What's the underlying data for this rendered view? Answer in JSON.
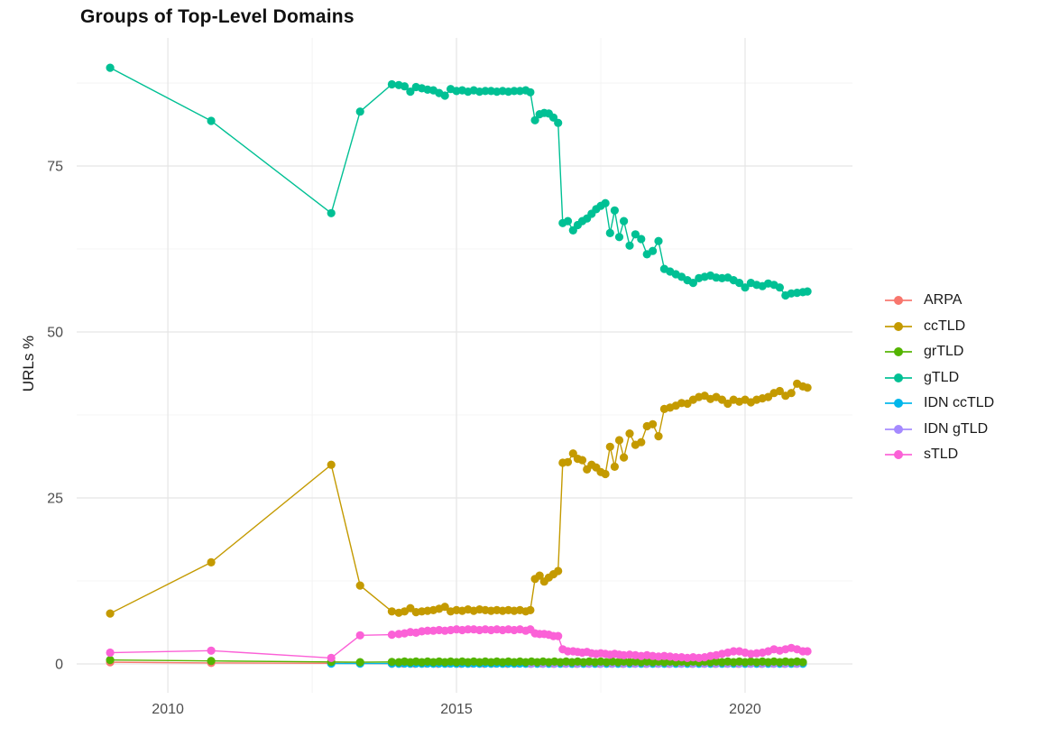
{
  "chart_data": {
    "type": "line",
    "title": "Groups of Top-Level Domains",
    "xlabel": "",
    "ylabel": "URLs %",
    "x_ticks": [
      2010,
      2015,
      2020
    ],
    "x_minor_ticks": [
      2012.5,
      2017.5
    ],
    "y_ticks": [
      0,
      25,
      50,
      75
    ],
    "y_minor_ticks": [
      12.5,
      37.5,
      62.5,
      87.5
    ],
    "xlim": [
      2008.42,
      2021.86
    ],
    "ylim": [
      -4.35,
      94.3
    ],
    "grid": true,
    "legend_position": "right",
    "marker": "point",
    "series": [
      {
        "name": "ARPA",
        "color": "#F8766D",
        "points": [
          [
            2009.0,
            0.25
          ],
          [
            2010.75,
            0.15
          ],
          [
            2012.83,
            0.1
          ],
          [
            2013.33,
            0.07
          ]
        ],
        "flat": {
          "from": 2013.88,
          "to": 2021.0,
          "step": 0.2,
          "value": 0.05,
          "amp": 0.02
        }
      },
      {
        "name": "ccTLD",
        "color": "#C49A00",
        "points": [
          [
            2009.0,
            7.6
          ],
          [
            2010.75,
            15.3
          ],
          [
            2012.83,
            30.0
          ],
          [
            2013.33,
            11.8
          ],
          [
            2013.88,
            7.9
          ],
          [
            2014.0,
            7.7
          ],
          [
            2014.1,
            7.9
          ],
          [
            2014.2,
            8.4
          ],
          [
            2014.3,
            7.8
          ],
          [
            2014.4,
            7.9
          ],
          [
            2014.5,
            8.0
          ],
          [
            2014.6,
            8.1
          ],
          [
            2014.7,
            8.3
          ],
          [
            2014.8,
            8.6
          ],
          [
            2014.9,
            7.9
          ],
          [
            2015.0,
            8.1
          ],
          [
            2015.1,
            8.0
          ],
          [
            2015.2,
            8.2
          ],
          [
            2015.3,
            8.0
          ],
          [
            2015.4,
            8.2
          ],
          [
            2015.5,
            8.1
          ],
          [
            2015.6,
            8.0
          ],
          [
            2015.7,
            8.1
          ],
          [
            2015.8,
            8.0
          ],
          [
            2015.9,
            8.1
          ],
          [
            2016.0,
            8.0
          ],
          [
            2016.1,
            8.1
          ],
          [
            2016.2,
            7.9
          ],
          [
            2016.28,
            8.1
          ],
          [
            2016.36,
            12.8
          ],
          [
            2016.44,
            13.3
          ],
          [
            2016.52,
            12.4
          ],
          [
            2016.6,
            13.0
          ],
          [
            2016.68,
            13.5
          ],
          [
            2016.76,
            14.0
          ],
          [
            2016.84,
            30.3
          ],
          [
            2016.93,
            30.4
          ],
          [
            2017.02,
            31.7
          ],
          [
            2017.1,
            30.9
          ],
          [
            2017.18,
            30.7
          ],
          [
            2017.26,
            29.3
          ],
          [
            2017.34,
            30.0
          ],
          [
            2017.42,
            29.6
          ],
          [
            2017.5,
            28.9
          ],
          [
            2017.58,
            28.6
          ],
          [
            2017.66,
            32.7
          ],
          [
            2017.74,
            29.7
          ],
          [
            2017.82,
            33.7
          ],
          [
            2017.9,
            31.1
          ],
          [
            2018.0,
            34.7
          ],
          [
            2018.1,
            33.0
          ],
          [
            2018.2,
            33.4
          ],
          [
            2018.3,
            35.8
          ],
          [
            2018.4,
            36.1
          ],
          [
            2018.5,
            34.3
          ],
          [
            2018.6,
            38.4
          ],
          [
            2018.7,
            38.6
          ],
          [
            2018.8,
            38.9
          ],
          [
            2018.9,
            39.3
          ],
          [
            2019.0,
            39.2
          ],
          [
            2019.1,
            39.8
          ],
          [
            2019.2,
            40.2
          ],
          [
            2019.3,
            40.4
          ],
          [
            2019.4,
            39.9
          ],
          [
            2019.5,
            40.2
          ],
          [
            2019.6,
            39.8
          ],
          [
            2019.7,
            39.2
          ],
          [
            2019.8,
            39.8
          ],
          [
            2019.9,
            39.5
          ],
          [
            2020.0,
            39.8
          ],
          [
            2020.1,
            39.4
          ],
          [
            2020.2,
            39.8
          ],
          [
            2020.3,
            40.0
          ],
          [
            2020.4,
            40.2
          ],
          [
            2020.5,
            40.8
          ],
          [
            2020.6,
            41.1
          ],
          [
            2020.7,
            40.4
          ],
          [
            2020.8,
            40.8
          ],
          [
            2020.9,
            42.2
          ],
          [
            2021.0,
            41.8
          ],
          [
            2021.08,
            41.6
          ]
        ]
      },
      {
        "name": "grTLD",
        "color": "#53B400",
        "points": [
          [
            2009.0,
            0.6
          ],
          [
            2010.75,
            0.45
          ],
          [
            2012.83,
            0.3
          ],
          [
            2013.33,
            0.25
          ],
          [
            2013.88,
            0.3
          ]
        ],
        "flat": {
          "from": 2014.0,
          "to": 2021.08,
          "step": 0.1,
          "value": 0.3,
          "amp": 0.05
        }
      },
      {
        "name": "gTLD",
        "color": "#00C094",
        "points": [
          [
            2009.0,
            89.8
          ],
          [
            2010.75,
            81.8
          ],
          [
            2012.83,
            67.9
          ],
          [
            2013.33,
            83.2
          ],
          [
            2013.88,
            87.3
          ],
          [
            2014.0,
            87.2
          ],
          [
            2014.1,
            87.0
          ],
          [
            2014.2,
            86.2
          ],
          [
            2014.3,
            86.9
          ],
          [
            2014.4,
            86.7
          ],
          [
            2014.5,
            86.5
          ],
          [
            2014.6,
            86.4
          ],
          [
            2014.7,
            86.0
          ],
          [
            2014.8,
            85.6
          ],
          [
            2014.9,
            86.6
          ],
          [
            2015.0,
            86.3
          ],
          [
            2015.1,
            86.4
          ],
          [
            2015.2,
            86.2
          ],
          [
            2015.3,
            86.4
          ],
          [
            2015.4,
            86.2
          ],
          [
            2015.5,
            86.3
          ],
          [
            2015.6,
            86.3
          ],
          [
            2015.7,
            86.2
          ],
          [
            2015.8,
            86.3
          ],
          [
            2015.9,
            86.2
          ],
          [
            2016.0,
            86.3
          ],
          [
            2016.1,
            86.3
          ],
          [
            2016.2,
            86.4
          ],
          [
            2016.28,
            86.1
          ],
          [
            2016.36,
            81.9
          ],
          [
            2016.44,
            82.8
          ],
          [
            2016.52,
            83.0
          ],
          [
            2016.6,
            82.9
          ],
          [
            2016.68,
            82.3
          ],
          [
            2016.76,
            81.5
          ],
          [
            2016.84,
            66.4
          ],
          [
            2016.93,
            66.7
          ],
          [
            2017.02,
            65.3
          ],
          [
            2017.1,
            66.1
          ],
          [
            2017.18,
            66.7
          ],
          [
            2017.26,
            67.1
          ],
          [
            2017.34,
            67.8
          ],
          [
            2017.42,
            68.5
          ],
          [
            2017.5,
            69.0
          ],
          [
            2017.58,
            69.4
          ],
          [
            2017.66,
            64.9
          ],
          [
            2017.74,
            68.3
          ],
          [
            2017.82,
            64.3
          ],
          [
            2017.9,
            66.7
          ],
          [
            2018.0,
            63.0
          ],
          [
            2018.1,
            64.7
          ],
          [
            2018.2,
            64.0
          ],
          [
            2018.3,
            61.7
          ],
          [
            2018.4,
            62.2
          ],
          [
            2018.5,
            63.7
          ],
          [
            2018.6,
            59.5
          ],
          [
            2018.7,
            59.1
          ],
          [
            2018.8,
            58.7
          ],
          [
            2018.9,
            58.3
          ],
          [
            2019.0,
            57.8
          ],
          [
            2019.1,
            57.4
          ],
          [
            2019.2,
            58.1
          ],
          [
            2019.3,
            58.3
          ],
          [
            2019.4,
            58.5
          ],
          [
            2019.5,
            58.2
          ],
          [
            2019.6,
            58.1
          ],
          [
            2019.7,
            58.2
          ],
          [
            2019.8,
            57.8
          ],
          [
            2019.9,
            57.4
          ],
          [
            2020.0,
            56.7
          ],
          [
            2020.1,
            57.4
          ],
          [
            2020.2,
            57.1
          ],
          [
            2020.3,
            56.9
          ],
          [
            2020.4,
            57.3
          ],
          [
            2020.5,
            57.1
          ],
          [
            2020.6,
            56.7
          ],
          [
            2020.7,
            55.5
          ],
          [
            2020.8,
            55.8
          ],
          [
            2020.9,
            55.9
          ],
          [
            2021.0,
            56.0
          ],
          [
            2021.08,
            56.1
          ]
        ]
      },
      {
        "name": "IDN ccTLD",
        "color": "#00B6EB",
        "points": [
          [
            2012.83,
            0.05
          ],
          [
            2013.33,
            0.05
          ],
          [
            2013.88,
            0.05
          ]
        ],
        "flat": {
          "from": 2014.0,
          "to": 2021.08,
          "step": 0.1,
          "value": 0.04,
          "amp": 0.02
        }
      },
      {
        "name": "IDN gTLD",
        "color": "#A58AFF",
        "points": [],
        "flat": {
          "from": 2016.3,
          "to": 2021.08,
          "step": 0.1,
          "value": 0.12,
          "amp": 0.1
        }
      },
      {
        "name": "sTLD",
        "color": "#FB61D7",
        "points": [
          [
            2009.0,
            1.7
          ],
          [
            2010.75,
            2.0
          ],
          [
            2012.83,
            0.9
          ],
          [
            2013.33,
            4.3
          ],
          [
            2013.88,
            4.4
          ],
          [
            2014.0,
            4.5
          ],
          [
            2014.1,
            4.6
          ],
          [
            2014.2,
            4.8
          ],
          [
            2014.3,
            4.7
          ],
          [
            2014.4,
            4.9
          ],
          [
            2014.5,
            5.0
          ],
          [
            2014.6,
            5.0
          ],
          [
            2014.7,
            5.1
          ],
          [
            2014.8,
            5.0
          ],
          [
            2014.9,
            5.1
          ],
          [
            2015.0,
            5.2
          ],
          [
            2015.1,
            5.1
          ],
          [
            2015.2,
            5.2
          ],
          [
            2015.3,
            5.2
          ],
          [
            2015.4,
            5.1
          ],
          [
            2015.5,
            5.2
          ],
          [
            2015.6,
            5.1
          ],
          [
            2015.7,
            5.2
          ],
          [
            2015.8,
            5.1
          ],
          [
            2015.9,
            5.2
          ],
          [
            2016.0,
            5.1
          ],
          [
            2016.1,
            5.2
          ],
          [
            2016.2,
            5.0
          ],
          [
            2016.28,
            5.2
          ],
          [
            2016.36,
            4.6
          ],
          [
            2016.44,
            4.5
          ],
          [
            2016.52,
            4.5
          ],
          [
            2016.6,
            4.4
          ],
          [
            2016.68,
            4.2
          ],
          [
            2016.76,
            4.2
          ],
          [
            2016.84,
            2.2
          ],
          [
            2016.93,
            1.9
          ],
          [
            2017.02,
            1.9
          ],
          [
            2017.1,
            1.8
          ],
          [
            2017.18,
            1.7
          ],
          [
            2017.26,
            1.8
          ],
          [
            2017.34,
            1.6
          ],
          [
            2017.42,
            1.5
          ],
          [
            2017.5,
            1.6
          ],
          [
            2017.58,
            1.5
          ],
          [
            2017.66,
            1.4
          ],
          [
            2017.74,
            1.5
          ],
          [
            2017.82,
            1.4
          ],
          [
            2017.9,
            1.3
          ],
          [
            2018.0,
            1.4
          ],
          [
            2018.1,
            1.3
          ],
          [
            2018.2,
            1.2
          ],
          [
            2018.3,
            1.3
          ],
          [
            2018.4,
            1.2
          ],
          [
            2018.5,
            1.1
          ],
          [
            2018.6,
            1.2
          ],
          [
            2018.7,
            1.1
          ],
          [
            2018.8,
            1.0
          ],
          [
            2018.9,
            1.0
          ],
          [
            2019.0,
            0.9
          ],
          [
            2019.1,
            1.0
          ],
          [
            2019.2,
            0.9
          ],
          [
            2019.3,
            1.0
          ],
          [
            2019.4,
            1.2
          ],
          [
            2019.5,
            1.3
          ],
          [
            2019.6,
            1.5
          ],
          [
            2019.7,
            1.7
          ],
          [
            2019.8,
            1.9
          ],
          [
            2019.9,
            1.9
          ],
          [
            2020.0,
            1.7
          ],
          [
            2020.1,
            1.5
          ],
          [
            2020.2,
            1.6
          ],
          [
            2020.3,
            1.7
          ],
          [
            2020.4,
            1.9
          ],
          [
            2020.5,
            2.2
          ],
          [
            2020.6,
            2.0
          ],
          [
            2020.7,
            2.2
          ],
          [
            2020.8,
            2.4
          ],
          [
            2020.9,
            2.2
          ],
          [
            2021.0,
            1.9
          ],
          [
            2021.08,
            1.9
          ]
        ]
      }
    ],
    "colors": {
      "background": "#ffffff",
      "grid_major": "#e5e5e5",
      "grid_minor": "#f2f2f2",
      "tick_label": "#4d4d4d",
      "title_text": "#111111"
    }
  }
}
